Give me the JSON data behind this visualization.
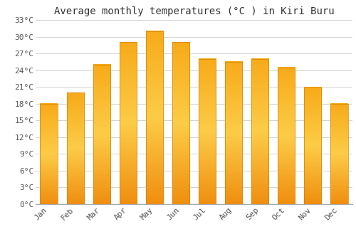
{
  "title": "Average monthly temperatures (°C ) in Kiri Buru",
  "months": [
    "Jan",
    "Feb",
    "Mar",
    "Apr",
    "May",
    "Jun",
    "Jul",
    "Aug",
    "Sep",
    "Oct",
    "Nov",
    "Dec"
  ],
  "values": [
    18,
    20,
    25,
    29,
    31,
    29,
    26,
    25.5,
    26,
    24.5,
    21,
    18
  ],
  "bar_color_top": "#FFA500",
  "bar_color_mid": "#FFD060",
  "bar_color_bot": "#F59000",
  "background_color": "#FFFFFF",
  "grid_color": "#CCCCCC",
  "title_fontsize": 10,
  "tick_fontsize": 8,
  "ylim": [
    0,
    33
  ],
  "yticks": [
    0,
    3,
    6,
    9,
    12,
    15,
    18,
    21,
    24,
    27,
    30,
    33
  ]
}
